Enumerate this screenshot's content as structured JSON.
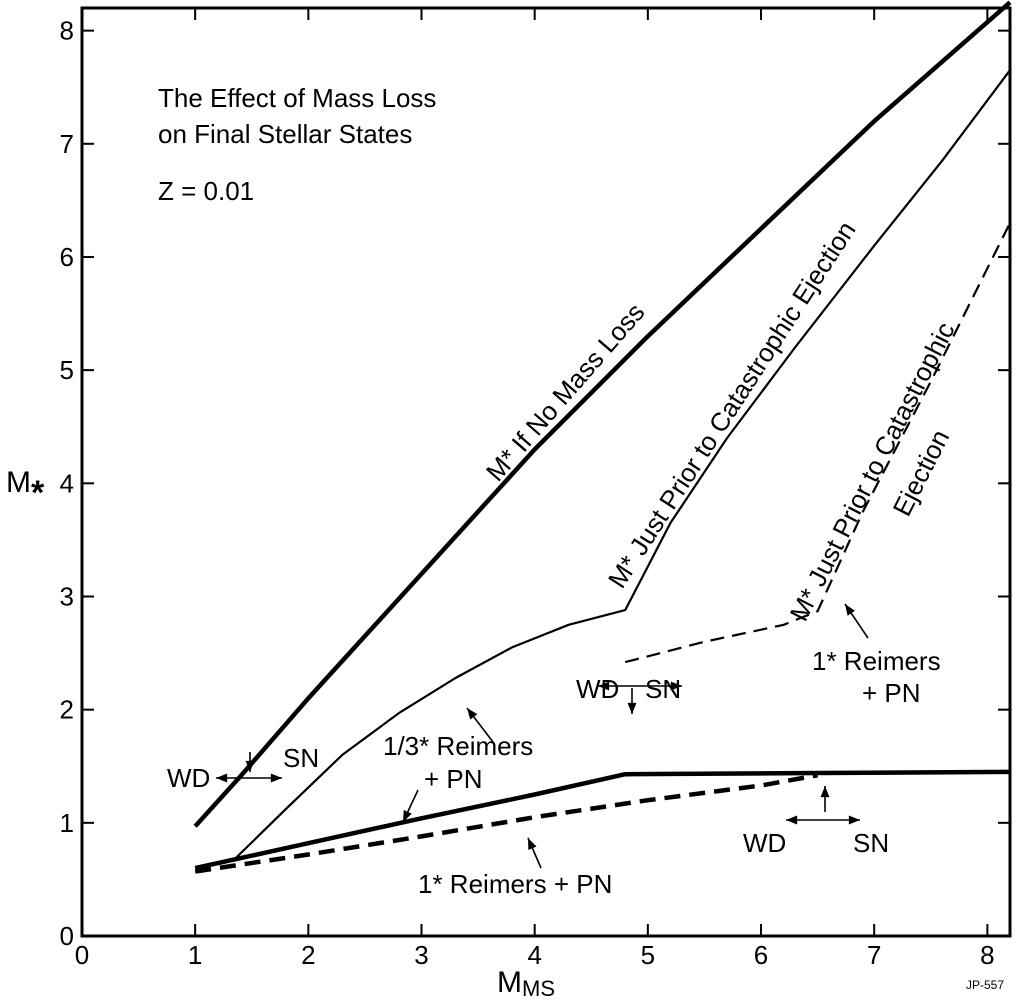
{
  "chart_data": {
    "type": "line",
    "title": [
      "The Effect of Mass Loss",
      "on Final Stellar States"
    ],
    "subtitle": "Z = 0.01",
    "xlabel": {
      "main": "M",
      "sub": "MS"
    },
    "ylabel": {
      "main": "M",
      "sub": "*"
    },
    "xlim": [
      0,
      8.2
    ],
    "ylim": [
      0,
      8.2
    ],
    "xticks": [
      0,
      1,
      2,
      3,
      4,
      5,
      6,
      7,
      8
    ],
    "yticks": [
      0,
      1,
      2,
      3,
      4,
      5,
      6,
      7,
      8
    ],
    "grid": false,
    "series": [
      {
        "name": "M* If No Mass Loss",
        "style": "thick-solid",
        "points": [
          [
            1.0,
            0.97
          ],
          [
            1.4,
            1.41
          ],
          [
            2.0,
            2.1
          ],
          [
            3.0,
            3.2
          ],
          [
            4.0,
            4.3
          ],
          [
            5.0,
            5.3
          ],
          [
            6.0,
            6.25
          ],
          [
            7.0,
            7.2
          ],
          [
            8.2,
            8.25
          ]
        ]
      },
      {
        "name": "M* Just Prior to Catastrophic Ejection",
        "style": "thin-solid",
        "points": [
          [
            1.35,
            0.68
          ],
          [
            1.8,
            1.12
          ],
          [
            2.3,
            1.6
          ],
          [
            2.8,
            1.97
          ],
          [
            3.3,
            2.28
          ],
          [
            3.8,
            2.55
          ],
          [
            4.3,
            2.75
          ],
          [
            4.8,
            2.88
          ],
          [
            5.2,
            3.65
          ],
          [
            5.7,
            4.4
          ],
          [
            6.3,
            5.2
          ],
          [
            7.0,
            6.1
          ],
          [
            7.6,
            6.85
          ],
          [
            8.2,
            7.65
          ]
        ]
      },
      {
        "name": "M* Just Prior to Catastrophic Ejection",
        "style": "thin-dashed",
        "points": [
          [
            4.8,
            2.42
          ],
          [
            5.5,
            2.6
          ],
          [
            6.2,
            2.75
          ],
          [
            6.5,
            2.87
          ],
          [
            6.9,
            3.75
          ],
          [
            7.5,
            4.9
          ],
          [
            8.2,
            6.3
          ]
        ]
      },
      {
        "name": "1/3* Reimers + PN",
        "style": "thick-solid",
        "points": [
          [
            1.0,
            0.6
          ],
          [
            2.0,
            0.82
          ],
          [
            3.0,
            1.04
          ],
          [
            4.0,
            1.25
          ],
          [
            4.8,
            1.43
          ],
          [
            6.5,
            1.44
          ],
          [
            8.2,
            1.45
          ]
        ]
      },
      {
        "name": "1* Reimers + PN",
        "style": "thick-dashed",
        "points": [
          [
            1.0,
            0.57
          ],
          [
            2.0,
            0.72
          ],
          [
            3.0,
            0.88
          ],
          [
            4.0,
            1.05
          ],
          [
            5.0,
            1.2
          ],
          [
            6.0,
            1.33
          ],
          [
            6.5,
            1.42
          ]
        ]
      }
    ],
    "annotations": {
      "curve_label_nomass": "M* If No Mass Loss",
      "curve_label_solid": "M* Just Prior to Catastrophic Ejection",
      "curve_label_dashed_1": "M* Just Prior to Catastrophic",
      "curve_label_dashed_2": "Ejection",
      "reimers_third_1": "1/3* Reimers",
      "reimers_third_2": "+ PN",
      "reimers_one_bottom": "1* Reimers + PN",
      "reimers_one_right_1": "1* Reimers",
      "reimers_one_right_2": "+ PN",
      "wd": "WD",
      "sn": "SN"
    },
    "plate_id": "JP-557"
  }
}
